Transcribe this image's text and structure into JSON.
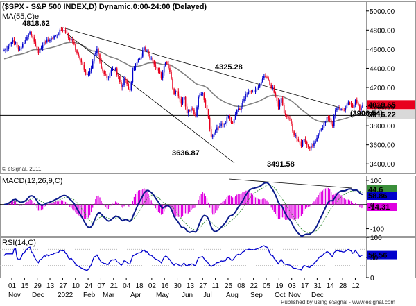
{
  "chart_data": {
    "type": "candlestick",
    "title": "($SPX - S&P 500 INDEX,D) Dynamic,0:00-24:00 (Delayed)",
    "ma_label": "MA(55,C)e",
    "watermark": "© eSignal, 2011",
    "footer": "Published by using eSignal - www.esignal.com",
    "price_axis": {
      "ylim": [
        3300,
        5100
      ],
      "ticks": [
        "5000.00",
        "4800.00",
        "4600.00",
        "4400.00",
        "4200.00",
        "4000.00",
        "3800.00",
        "3600.00",
        "3400.00"
      ]
    },
    "date_labels": [
      "01",
      "15",
      "29",
      "13",
      "27",
      "10",
      "24",
      "07",
      "21",
      "04",
      "18",
      "02",
      "16",
      "30",
      "13",
      "27",
      "11",
      "25",
      "08",
      "22",
      "05",
      "19",
      "03",
      "17",
      "31",
      "14",
      "28",
      "12"
    ],
    "month_labels": [
      "Nov",
      "Dec",
      "2022",
      "Feb",
      "Mar",
      "Apr",
      "May",
      "Jun",
      "Jul",
      "Aug",
      "Sep",
      "Oct",
      "Nov",
      "Dec"
    ],
    "annotations": [
      {
        "text": "4818.62",
        "value": 4818.62
      },
      {
        "text": "3636.87",
        "value": 3636.87
      },
      {
        "text": "4325.28",
        "value": 4325.28
      },
      {
        "text": "3491.58",
        "value": 3491.58
      },
      {
        "text": "(3906.54)",
        "value": 3906.54
      }
    ],
    "price_tags": [
      {
        "text": "4019.65",
        "value": 4019.65,
        "color": "#e8001e"
      },
      {
        "text": "3916.22",
        "value": 3916.22,
        "color": "#d9d9d9"
      }
    ],
    "anchors": [
      {
        "d": 0,
        "c": 4590
      },
      {
        "d": 6,
        "c": 4700
      },
      {
        "d": 11,
        "c": 4600
      },
      {
        "d": 15,
        "c": 4700
      },
      {
        "d": 18,
        "c": 4780
      },
      {
        "d": 20,
        "c": 4720
      },
      {
        "d": 24,
        "c": 4560
      },
      {
        "d": 28,
        "c": 4680
      },
      {
        "d": 32,
        "c": 4700
      },
      {
        "d": 37,
        "c": 4750
      },
      {
        "d": 40,
        "c": 4800
      },
      {
        "d": 44,
        "c": 4765
      },
      {
        "d": 46,
        "c": 4700
      },
      {
        "d": 48,
        "c": 4680
      },
      {
        "d": 50,
        "c": 4590
      },
      {
        "d": 53,
        "c": 4500
      },
      {
        "d": 55,
        "c": 4440
      },
      {
        "d": 58,
        "c": 4330
      },
      {
        "d": 61,
        "c": 4400
      },
      {
        "d": 63,
        "c": 4550
      },
      {
        "d": 65,
        "c": 4600
      },
      {
        "d": 68,
        "c": 4400
      },
      {
        "d": 70,
        "c": 4340
      },
      {
        "d": 73,
        "c": 4300
      },
      {
        "d": 75,
        "c": 4380
      },
      {
        "d": 78,
        "c": 4400
      },
      {
        "d": 82,
        "c": 4200
      },
      {
        "d": 84,
        "c": 4290
      },
      {
        "d": 88,
        "c": 4170
      },
      {
        "d": 90,
        "c": 4380
      },
      {
        "d": 95,
        "c": 4500
      },
      {
        "d": 98,
        "c": 4620
      },
      {
        "d": 101,
        "c": 4550
      },
      {
        "d": 104,
        "c": 4480
      },
      {
        "d": 107,
        "c": 4400
      },
      {
        "d": 110,
        "c": 4300
      },
      {
        "d": 113,
        "c": 4460
      },
      {
        "d": 116,
        "c": 4360
      },
      {
        "d": 119,
        "c": 4130
      },
      {
        "d": 121,
        "c": 4160
      },
      {
        "d": 124,
        "c": 4030
      },
      {
        "d": 126,
        "c": 4100
      },
      {
        "d": 128,
        "c": 3930
      },
      {
        "d": 131,
        "c": 3980
      },
      {
        "d": 134,
        "c": 3900
      },
      {
        "d": 136,
        "c": 4100
      },
      {
        "d": 139,
        "c": 4140
      },
      {
        "d": 142,
        "c": 3970
      },
      {
        "d": 145,
        "c": 3680
      },
      {
        "d": 148,
        "c": 3750
      },
      {
        "d": 151,
        "c": 3800
      },
      {
        "d": 154,
        "c": 3820
      },
      {
        "d": 157,
        "c": 3900
      },
      {
        "d": 160,
        "c": 3830
      },
      {
        "d": 163,
        "c": 3960
      },
      {
        "d": 166,
        "c": 4000
      },
      {
        "d": 169,
        "c": 4130
      },
      {
        "d": 172,
        "c": 4160
      },
      {
        "d": 175,
        "c": 4150
      },
      {
        "d": 178,
        "c": 4210
      },
      {
        "d": 181,
        "c": 4300
      },
      {
        "d": 184,
        "c": 4305
      },
      {
        "d": 186,
        "c": 4230
      },
      {
        "d": 188,
        "c": 4200
      },
      {
        "d": 190,
        "c": 4110
      },
      {
        "d": 192,
        "c": 4000
      },
      {
        "d": 194,
        "c": 4090
      },
      {
        "d": 196,
        "c": 3930
      },
      {
        "d": 198,
        "c": 3900
      },
      {
        "d": 200,
        "c": 3870
      },
      {
        "d": 202,
        "c": 3740
      },
      {
        "d": 204,
        "c": 3700
      },
      {
        "d": 206,
        "c": 3640
      },
      {
        "d": 208,
        "c": 3590
      },
      {
        "d": 210,
        "c": 3660
      },
      {
        "d": 212,
        "c": 3600
      },
      {
        "d": 214,
        "c": 3560
      },
      {
        "d": 216,
        "c": 3585
      },
      {
        "d": 218,
        "c": 3640
      },
      {
        "d": 220,
        "c": 3710
      },
      {
        "d": 222,
        "c": 3760
      },
      {
        "d": 224,
        "c": 3830
      },
      {
        "d": 226,
        "c": 3890
      },
      {
        "d": 228,
        "c": 3860
      },
      {
        "d": 230,
        "c": 3800
      },
      {
        "d": 232,
        "c": 3960
      },
      {
        "d": 234,
        "c": 3990
      },
      {
        "d": 236,
        "c": 3975
      },
      {
        "d": 238,
        "c": 3965
      },
      {
        "d": 240,
        "c": 4020
      },
      {
        "d": 242,
        "c": 4030
      },
      {
        "d": 244,
        "c": 3990
      },
      {
        "d": 246,
        "c": 4070
      },
      {
        "d": 248,
        "c": 4010
      },
      {
        "d": 249,
        "c": 3960
      },
      {
        "d": 251,
        "c": 4019.65
      }
    ],
    "macd": {
      "label": "MACD(12,26,9,C)",
      "ylim": [
        -130,
        120
      ],
      "ticks": [
        "100",
        "0",
        "-100"
      ],
      "tags": [
        {
          "text": "44.6",
          "value": 44.6,
          "color": "#3a8f3a"
        },
        {
          "text": "58.86",
          "value": 58.86,
          "color": "#0000cc"
        },
        {
          "text": "-14.31",
          "value": -14.31,
          "color": "#e000e0"
        }
      ]
    },
    "rsi": {
      "label": "RSI(14,C)",
      "ylim": [
        0,
        100
      ],
      "ticks": [
        "100",
        "50",
        "0"
      ],
      "tags": [
        {
          "text": "56.56",
          "value": 56.56,
          "color": "#0000cc"
        }
      ]
    }
  }
}
